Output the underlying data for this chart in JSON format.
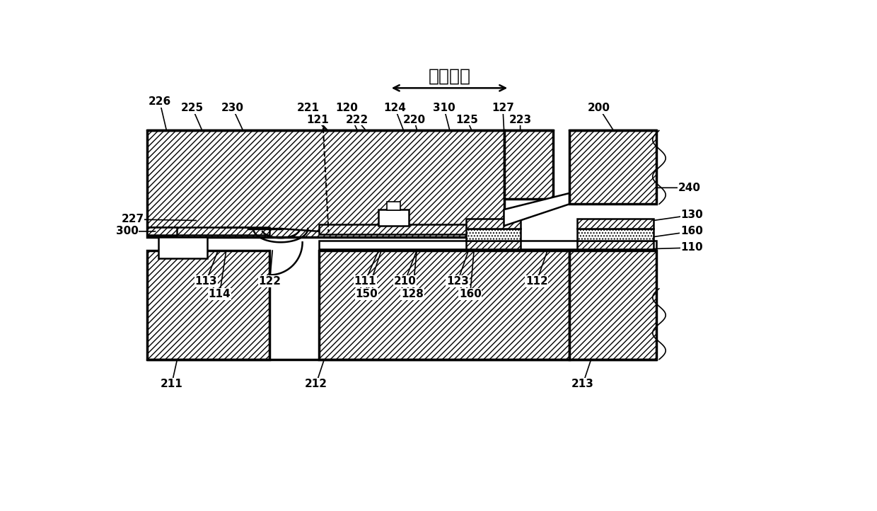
{
  "bg_color": "#ffffff",
  "lc": "#000000",
  "title": "连结方向",
  "lw_thick": 2.5,
  "lw_med": 1.8,
  "lw_thin": 1.2,
  "lw_label": 0.9,
  "label_fs": 11
}
